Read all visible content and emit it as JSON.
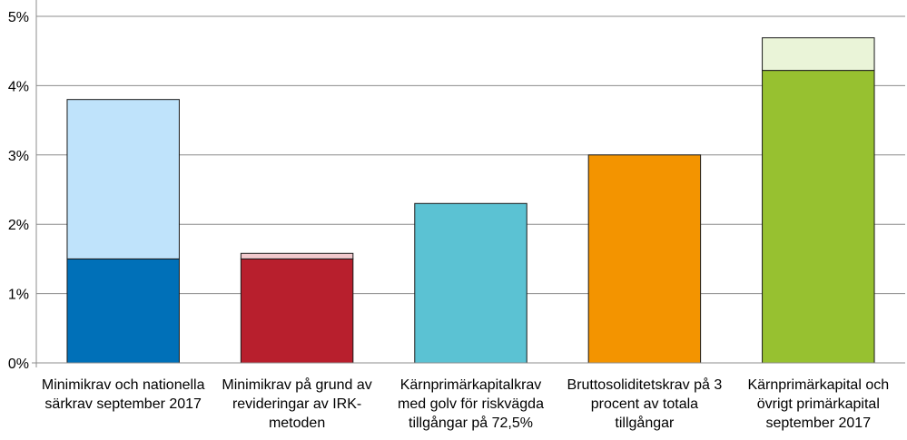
{
  "chart_data": {
    "type": "bar",
    "stacked": true,
    "categories": [
      [
        "Minimikrav och nationella",
        "särkrav september 2017"
      ],
      [
        "Minimikrav på grund av",
        "revideringar av IRK-",
        "metoden"
      ],
      [
        "Kärnprimärkapitalkrav",
        "med golv för riskvägda",
        "tillgångar på 72,5%"
      ],
      [
        "Bruttosoliditetskrav på 3",
        "procent av totala",
        "tillgångar"
      ],
      [
        "Kärnprimärkapital och",
        "övrigt primärkapital",
        "september 2017"
      ]
    ],
    "segments": [
      {
        "values": [
          1.5,
          1.5,
          2.3,
          3.0,
          4.22
        ],
        "colors": [
          "#0070b8",
          "#b81f2d",
          "#5bc2d3",
          "#f39400",
          "#97c130"
        ]
      },
      {
        "values": [
          2.3,
          0.08,
          0,
          0,
          0.47
        ],
        "colors": [
          "#bfe3fb",
          "#f2c9cd",
          "#ffffff",
          "#ffffff",
          "#eaf4d8"
        ]
      }
    ],
    "ylim": [
      0,
      5
    ],
    "y_ticks": [
      "0%",
      "1%",
      "2%",
      "3%",
      "4%",
      "5%"
    ],
    "grid": true,
    "legend": "none",
    "title": "",
    "xlabel": "",
    "ylabel": ""
  }
}
